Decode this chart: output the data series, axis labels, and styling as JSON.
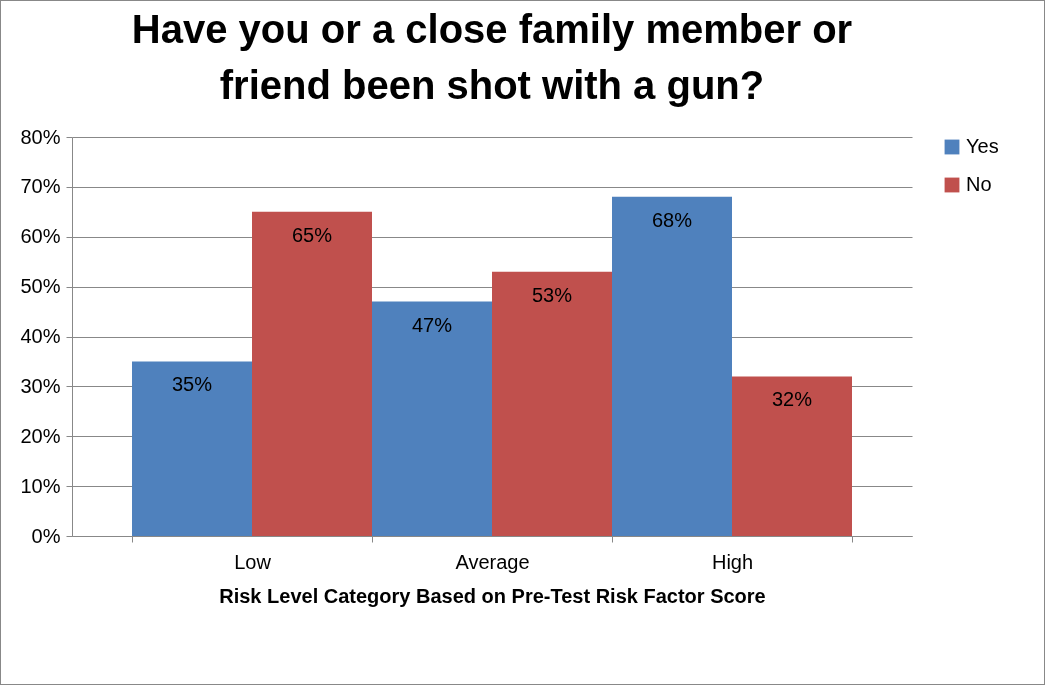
{
  "chart_data": {
    "type": "bar",
    "title": "Have you or a close family member or friend been shot with a gun?",
    "xlabel": "Risk Level Category Based on Pre-Test Risk Factor Score",
    "categories": [
      "Low",
      "Average",
      "High"
    ],
    "series": [
      {
        "name": "Yes",
        "color": "#4f81bd",
        "values": [
          35,
          47,
          68
        ],
        "value_labels": [
          "35%",
          "47%",
          "68%"
        ]
      },
      {
        "name": "No",
        "color": "#c0504d",
        "values": [
          65,
          53,
          32
        ],
        "value_labels": [
          "65%",
          "53%",
          "32%"
        ]
      }
    ],
    "ylim": [
      0,
      80
    ],
    "yticks": [
      {
        "value": 0,
        "label": "0%"
      },
      {
        "value": 10,
        "label": "10%"
      },
      {
        "value": 20,
        "label": "20%"
      },
      {
        "value": 30,
        "label": "30%"
      },
      {
        "value": 40,
        "label": "40%"
      },
      {
        "value": 50,
        "label": "50%"
      },
      {
        "value": 60,
        "label": "60%"
      },
      {
        "value": 70,
        "label": "70%"
      },
      {
        "value": 80,
        "label": "80%"
      }
    ],
    "grid": "y",
    "legend": "right"
  }
}
